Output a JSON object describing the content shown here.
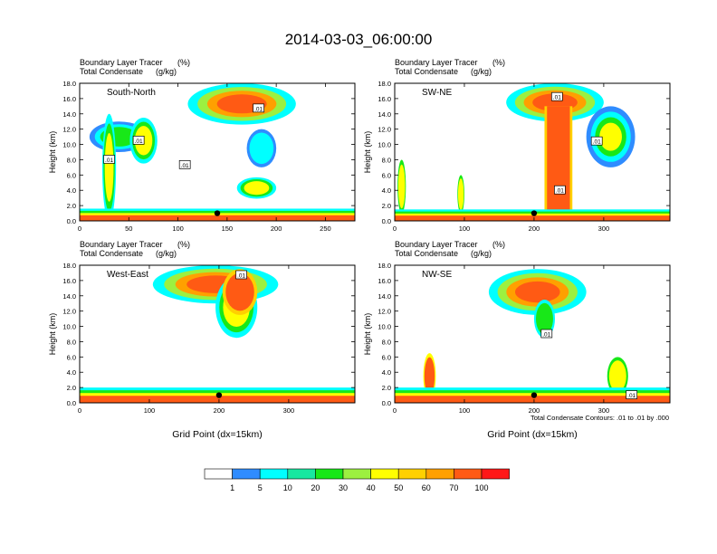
{
  "figure": {
    "title": "2014-03-03_06:00:00",
    "x_axis_label": "Grid Point (dx=15km)",
    "contour_note": "Total Condensate Contours: .01 to .01 by .000",
    "colorbar": {
      "levels": [
        "1",
        "5",
        "10",
        "20",
        "30",
        "40",
        "50",
        "60",
        "70",
        "100"
      ],
      "colors": [
        "#ffffff",
        "#2f8cff",
        "#00ffff",
        "#18e8a0",
        "#18e818",
        "#9cf040",
        "#ffff00",
        "#ffd000",
        "#ffa000",
        "#ff5a14",
        "#ff1818"
      ]
    }
  },
  "chart_data": [
    {
      "type": "heatmap",
      "panel_label": "South-North",
      "left_title_1": "Boundary Layer Tracer",
      "right_title_1": "(%)",
      "left_title_2": "Total Condensate",
      "right_title_2": "(g/kg)",
      "ylabel": "Height (km)",
      "xlim": [
        0,
        280
      ],
      "ylim": [
        0,
        18
      ],
      "xticks": [
        0,
        50,
        100,
        150,
        200,
        250
      ],
      "yticks": [
        "0.0",
        "2.0",
        "4.0",
        "6.0",
        "8.0",
        "10.0",
        "12.0",
        "14.0",
        "16.0",
        "18.0"
      ],
      "contour_labels": [
        {
          "text": ".01",
          "x": 30,
          "y": 8
        },
        {
          "text": ".01",
          "x": 60,
          "y": 10.5
        },
        {
          "text": ".01",
          "x": 107,
          "y": 7.3
        },
        {
          "text": ".01",
          "x": 182,
          "y": 14.7
        }
      ],
      "marker": {
        "x": 140,
        "y": 1.0
      },
      "bl_tracer_regions": [
        {
          "shape": "ellipse",
          "cx": 40,
          "cy": 11.0,
          "rx": 30,
          "ry": 2.0,
          "levels": [
            1,
            5,
            20
          ]
        },
        {
          "shape": "ellipse",
          "cx": 30,
          "cy": 7.0,
          "rx": 7,
          "ry": 7.0,
          "levels": [
            5,
            20,
            40
          ]
        },
        {
          "shape": "ellipse",
          "cx": 65,
          "cy": 10.5,
          "rx": 14,
          "ry": 3.0,
          "levels": [
            5,
            20,
            40
          ]
        },
        {
          "shape": "ellipse",
          "cx": 165,
          "cy": 15.3,
          "rx": 55,
          "ry": 2.7,
          "levels": [
            5,
            30,
            60,
            70
          ]
        },
        {
          "shape": "ellipse",
          "cx": 185,
          "cy": 9.5,
          "rx": 15,
          "ry": 2.5,
          "levels": [
            1,
            5
          ]
        },
        {
          "shape": "ellipse",
          "cx": 180,
          "cy": 4.3,
          "rx": 20,
          "ry": 1.4,
          "levels": [
            5,
            20,
            40
          ]
        },
        {
          "shape": "band",
          "x0": 0,
          "x1": 280,
          "top": 1.6,
          "levels": [
            5,
            20,
            40,
            70
          ]
        }
      ]
    },
    {
      "type": "heatmap",
      "panel_label": "SW-NE",
      "left_title_1": "Boundary Layer Tracer",
      "right_title_1": "(%)",
      "left_title_2": "Total Condensate",
      "right_title_2": "(g/kg)",
      "ylabel": "Height (km)",
      "xlim": [
        0,
        395
      ],
      "ylim": [
        0,
        18
      ],
      "xticks": [
        0,
        100,
        200,
        300
      ],
      "yticks": [
        "0.0",
        "2.0",
        "4.0",
        "6.0",
        "8.0",
        "10.0",
        "12.0",
        "14.0",
        "16.0",
        "18.0"
      ],
      "contour_labels": [
        {
          "text": ".01",
          "x": 233,
          "y": 16.2
        },
        {
          "text": ".01",
          "x": 290,
          "y": 10.4
        },
        {
          "text": ".01",
          "x": 237,
          "y": 4.0
        }
      ],
      "marker": {
        "x": 200,
        "y": 1.0
      },
      "bl_tracer_regions": [
        {
          "shape": "ellipse",
          "cx": 230,
          "cy": 15.5,
          "rx": 70,
          "ry": 2.5,
          "levels": [
            5,
            30,
            60,
            70
          ]
        },
        {
          "shape": "column",
          "x0": 215,
          "x1": 255,
          "top": 15.0,
          "levels": [
            50,
            70
          ]
        },
        {
          "shape": "ellipse",
          "cx": 310,
          "cy": 11.0,
          "rx": 35,
          "ry": 4.0,
          "levels": [
            1,
            5,
            20,
            40
          ]
        },
        {
          "shape": "ellipse",
          "cx": 10,
          "cy": 4.5,
          "rx": 6,
          "ry": 3.5,
          "levels": [
            20,
            40
          ]
        },
        {
          "shape": "ellipse",
          "cx": 95,
          "cy": 3.5,
          "rx": 5,
          "ry": 2.5,
          "levels": [
            20,
            40
          ]
        },
        {
          "shape": "band",
          "x0": 0,
          "x1": 395,
          "top": 1.5,
          "levels": [
            5,
            20,
            40,
            70
          ]
        }
      ]
    },
    {
      "type": "heatmap",
      "panel_label": "West-East",
      "left_title_1": "Boundary Layer Tracer",
      "right_title_1": "(%)",
      "left_title_2": "Total Condensate",
      "right_title_2": "(g/kg)",
      "ylabel": "Height (km)",
      "xlim": [
        0,
        395
      ],
      "ylim": [
        0,
        18
      ],
      "xticks": [
        0,
        100,
        200,
        300
      ],
      "yticks": [
        "0.0",
        "2.0",
        "4.0",
        "6.0",
        "8.0",
        "10.0",
        "12.0",
        "14.0",
        "16.0",
        "18.0"
      ],
      "contour_labels": [
        {
          "text": ".01",
          "x": 232,
          "y": 16.7
        }
      ],
      "marker": {
        "x": 200,
        "y": 1.0
      },
      "bl_tracer_regions": [
        {
          "shape": "ellipse",
          "cx": 195,
          "cy": 15.5,
          "rx": 90,
          "ry": 2.5,
          "levels": [
            5,
            30,
            60,
            70
          ]
        },
        {
          "shape": "ellipse",
          "cx": 225,
          "cy": 12.5,
          "rx": 30,
          "ry": 4.0,
          "levels": [
            5,
            20,
            40
          ]
        },
        {
          "shape": "ellipse",
          "cx": 230,
          "cy": 14.5,
          "rx": 25,
          "ry": 3.0,
          "levels": [
            50,
            70
          ]
        },
        {
          "shape": "band",
          "x0": 0,
          "x1": 395,
          "top": 2.0,
          "levels": [
            5,
            20,
            40,
            70
          ]
        }
      ]
    },
    {
      "type": "heatmap",
      "panel_label": "NW-SE",
      "left_title_1": "Boundary Layer Tracer",
      "right_title_1": "(%)",
      "left_title_2": "Total Condensate",
      "right_title_2": "(g/kg)",
      "ylabel": "Height (km)",
      "xlim": [
        0,
        395
      ],
      "ylim": [
        0,
        18
      ],
      "xticks": [
        0,
        100,
        200,
        300
      ],
      "yticks": [
        "0.0",
        "2.0",
        "4.0",
        "6.0",
        "8.0",
        "10.0",
        "12.0",
        "14.0",
        "16.0",
        "18.0"
      ],
      "contour_labels": [
        {
          "text": ".01",
          "x": 218,
          "y": 9.0
        },
        {
          "text": ".01",
          "x": 340,
          "y": 1.0
        }
      ],
      "marker": {
        "x": 200,
        "y": 1.0
      },
      "bl_tracer_regions": [
        {
          "shape": "ellipse",
          "cx": 205,
          "cy": 14.5,
          "rx": 70,
          "ry": 3.0,
          "levels": [
            5,
            30,
            60,
            70
          ]
        },
        {
          "shape": "ellipse",
          "cx": 215,
          "cy": 11.0,
          "rx": 15,
          "ry": 2.5,
          "levels": [
            5,
            20
          ]
        },
        {
          "shape": "ellipse",
          "cx": 50,
          "cy": 3.5,
          "rx": 9,
          "ry": 3.0,
          "levels": [
            40,
            70
          ]
        },
        {
          "shape": "ellipse",
          "cx": 320,
          "cy": 3.5,
          "rx": 15,
          "ry": 2.5,
          "levels": [
            20,
            40
          ]
        },
        {
          "shape": "band",
          "x0": 0,
          "x1": 395,
          "top": 2.0,
          "levels": [
            5,
            20,
            40,
            70
          ]
        }
      ]
    }
  ]
}
